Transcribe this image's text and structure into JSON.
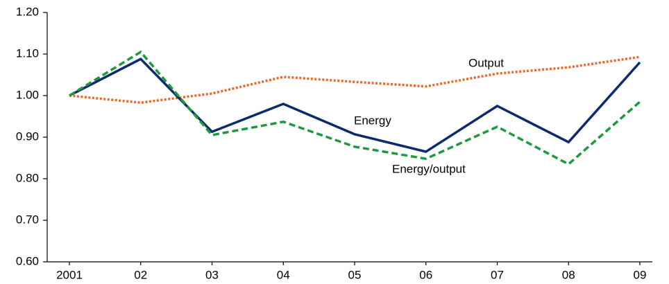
{
  "chart_data": {
    "type": "line",
    "categories": [
      "2001",
      "02",
      "03",
      "04",
      "05",
      "06",
      "07",
      "08",
      "09"
    ],
    "series": [
      {
        "name": "Output",
        "color": "#f26522",
        "dash": "dotted",
        "values": [
          1.0,
          0.983,
          1.005,
          1.045,
          1.033,
          1.022,
          1.053,
          1.068,
          1.093
        ]
      },
      {
        "name": "Energy",
        "color": "#0d2a6e",
        "dash": "solid",
        "values": [
          1.0,
          1.088,
          0.913,
          0.98,
          0.907,
          0.865,
          0.975,
          0.888,
          1.08
        ]
      },
      {
        "name": "Energy/output",
        "color": "#1e9a3e",
        "dash": "dashed",
        "values": [
          1.0,
          1.105,
          0.905,
          0.937,
          0.877,
          0.848,
          0.925,
          0.835,
          0.985
        ]
      }
    ],
    "ylim": [
      0.6,
      1.2
    ],
    "yticks": [
      {
        "value": 0.6,
        "label": "0.60"
      },
      {
        "value": 0.7,
        "label": "0.70"
      },
      {
        "value": 0.8,
        "label": "0.80"
      },
      {
        "value": 0.9,
        "label": "0.90"
      },
      {
        "value": 1.0,
        "label": "1.00"
      },
      {
        "value": 1.1,
        "label": "1.10"
      },
      {
        "value": 1.2,
        "label": "1.20"
      }
    ],
    "grid": false
  }
}
